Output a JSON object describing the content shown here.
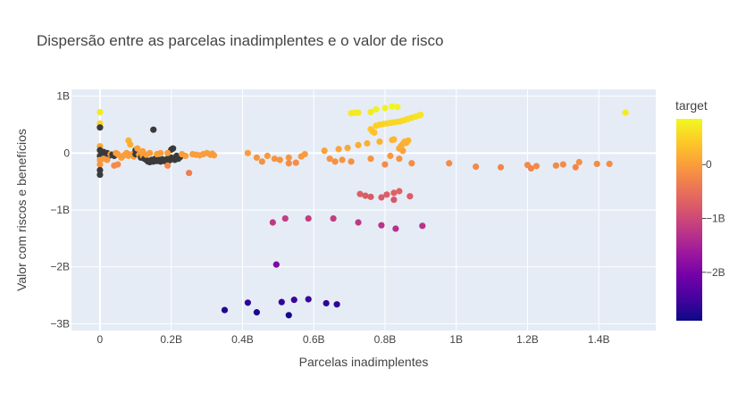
{
  "chart_data": {
    "type": "scatter",
    "title": "Dispersão entre as parcelas inadimplentes e o valor de risco",
    "xlabel": "Parcelas inadimplentes",
    "ylabel": "Valor com riscos e benefícios",
    "xlim": [
      -0.08,
      1.56
    ],
    "ylim": [
      -3.12,
      1.12
    ],
    "unit_suffix": "B",
    "x_ticks": [
      {
        "value": 0,
        "label": "0"
      },
      {
        "value": 0.2,
        "label": "0.2B"
      },
      {
        "value": 0.4,
        "label": "0.4B"
      },
      {
        "value": 0.6,
        "label": "0.6B"
      },
      {
        "value": 0.8,
        "label": "0.8B"
      },
      {
        "value": 1.0,
        "label": "1B"
      },
      {
        "value": 1.2,
        "label": "1.2B"
      },
      {
        "value": 1.4,
        "label": "1.4B"
      }
    ],
    "y_ticks": [
      {
        "value": 1,
        "label": "1B"
      },
      {
        "value": 0,
        "label": "0"
      },
      {
        "value": -1,
        "label": "−1B"
      },
      {
        "value": -2,
        "label": "−2B"
      },
      {
        "value": -3,
        "label": "−3B"
      }
    ],
    "colorbar": {
      "title": "target",
      "min": -2.9,
      "max": 0.85,
      "ticks": [
        {
          "value": 0,
          "label": "0"
        },
        {
          "value": -1,
          "label": "−1B"
        },
        {
          "value": -2,
          "label": "−2B"
        }
      ],
      "colorscale": [
        "#0d0887",
        "#46039f",
        "#7201a8",
        "#9c179e",
        "#bd3786",
        "#d8576b",
        "#ed7953",
        "#fb9f3a",
        "#fdca26",
        "#f0f921"
      ]
    },
    "dark_color": "#3a3a3a",
    "points": [
      {
        "x": 0.0,
        "y": 0.72,
        "c": 0.72
      },
      {
        "x": 0.0,
        "y": 0.52,
        "c": 0.52
      },
      {
        "x": 0.0,
        "y": 0.45,
        "c": "dark"
      },
      {
        "x": 0.0,
        "y": 0.12,
        "c": 0.1
      },
      {
        "x": 0.0,
        "y": 0.05,
        "c": "dark"
      },
      {
        "x": 0.0,
        "y": -0.05,
        "c": "dark"
      },
      {
        "x": 0.0,
        "y": -0.12,
        "c": 0.0
      },
      {
        "x": 0.0,
        "y": -0.2,
        "c": -0.1
      },
      {
        "x": 0.0,
        "y": -0.3,
        "c": "dark"
      },
      {
        "x": 0.0,
        "y": -0.38,
        "c": "dark"
      },
      {
        "x": 0.005,
        "y": -0.02,
        "c": "dark"
      },
      {
        "x": 0.01,
        "y": 0.02,
        "c": "dark"
      },
      {
        "x": 0.015,
        "y": -0.03,
        "c": "dark"
      },
      {
        "x": 0.02,
        "y": 0.0,
        "c": "dark"
      },
      {
        "x": 0.025,
        "y": -0.05,
        "c": "dark"
      },
      {
        "x": 0.01,
        "y": -0.1,
        "c": -0.05
      },
      {
        "x": 0.02,
        "y": -0.12,
        "c": -0.05
      },
      {
        "x": 0.03,
        "y": -0.02,
        "c": 0.0
      },
      {
        "x": 0.035,
        "y": -0.03,
        "c": "dark"
      },
      {
        "x": 0.04,
        "y": -0.05,
        "c": "dark"
      },
      {
        "x": 0.045,
        "y": 0.0,
        "c": 0.0
      },
      {
        "x": 0.05,
        "y": -0.02,
        "c": 0.0
      },
      {
        "x": 0.04,
        "y": -0.22,
        "c": -0.2
      },
      {
        "x": 0.05,
        "y": -0.2,
        "c": -0.2
      },
      {
        "x": 0.06,
        "y": -0.08,
        "c": 0.0
      },
      {
        "x": 0.065,
        "y": -0.05,
        "c": 0.0
      },
      {
        "x": 0.07,
        "y": -0.03,
        "c": 0.0
      },
      {
        "x": 0.075,
        "y": 0.0,
        "c": 0.0
      },
      {
        "x": 0.08,
        "y": -0.05,
        "c": 0.0
      },
      {
        "x": 0.08,
        "y": 0.22,
        "c": 0.2
      },
      {
        "x": 0.085,
        "y": 0.15,
        "c": 0.15
      },
      {
        "x": 0.09,
        "y": -0.02,
        "c": 0.0
      },
      {
        "x": 0.095,
        "y": -0.06,
        "c": 0.0
      },
      {
        "x": 0.1,
        "y": -0.02,
        "c": "dark"
      },
      {
        "x": 0.1,
        "y": 0.05,
        "c": "dark"
      },
      {
        "x": 0.105,
        "y": 0.08,
        "c": 0.05
      },
      {
        "x": 0.11,
        "y": -0.03,
        "c": 0.0
      },
      {
        "x": 0.115,
        "y": -0.08,
        "c": "dark"
      },
      {
        "x": 0.12,
        "y": -0.05,
        "c": 0.0
      },
      {
        "x": 0.12,
        "y": 0.03,
        "c": 0.0
      },
      {
        "x": 0.125,
        "y": -0.1,
        "c": "dark"
      },
      {
        "x": 0.13,
        "y": -0.12,
        "c": "dark"
      },
      {
        "x": 0.135,
        "y": -0.15,
        "c": "dark"
      },
      {
        "x": 0.14,
        "y": -0.16,
        "c": "dark"
      },
      {
        "x": 0.145,
        "y": -0.12,
        "c": "dark"
      },
      {
        "x": 0.15,
        "y": -0.15,
        "c": "dark"
      },
      {
        "x": 0.15,
        "y": 0.41,
        "c": "dark"
      },
      {
        "x": 0.155,
        "y": -0.1,
        "c": "dark"
      },
      {
        "x": 0.16,
        "y": -0.14,
        "c": "dark"
      },
      {
        "x": 0.165,
        "y": -0.12,
        "c": "dark"
      },
      {
        "x": 0.17,
        "y": -0.15,
        "c": "dark"
      },
      {
        "x": 0.175,
        "y": -0.11,
        "c": "dark"
      },
      {
        "x": 0.18,
        "y": -0.14,
        "c": "dark"
      },
      {
        "x": 0.185,
        "y": -0.12,
        "c": "dark"
      },
      {
        "x": 0.19,
        "y": -0.1,
        "c": "dark"
      },
      {
        "x": 0.195,
        "y": -0.13,
        "c": "dark"
      },
      {
        "x": 0.2,
        "y": -0.08,
        "c": "dark"
      },
      {
        "x": 0.2,
        "y": 0.06,
        "c": "dark"
      },
      {
        "x": 0.205,
        "y": 0.08,
        "c": "dark"
      },
      {
        "x": 0.21,
        "y": -0.12,
        "c": "dark"
      },
      {
        "x": 0.215,
        "y": -0.05,
        "c": "dark"
      },
      {
        "x": 0.22,
        "y": -0.1,
        "c": "dark"
      },
      {
        "x": 0.225,
        "y": -0.07,
        "c": "dark"
      },
      {
        "x": 0.13,
        "y": -0.03,
        "c": 0.0
      },
      {
        "x": 0.14,
        "y": 0.0,
        "c": 0.0
      },
      {
        "x": 0.16,
        "y": -0.02,
        "c": 0.0
      },
      {
        "x": 0.17,
        "y": 0.0,
        "c": 0.0
      },
      {
        "x": 0.19,
        "y": -0.22,
        "c": -0.2
      },
      {
        "x": 0.19,
        "y": 0.0,
        "c": 0.0
      },
      {
        "x": 0.23,
        "y": -0.02,
        "c": 0.0
      },
      {
        "x": 0.24,
        "y": -0.05,
        "c": 0.0
      },
      {
        "x": 0.25,
        "y": -0.35,
        "c": -0.35
      },
      {
        "x": 0.26,
        "y": -0.02,
        "c": 0.0
      },
      {
        "x": 0.27,
        "y": -0.03,
        "c": 0.0
      },
      {
        "x": 0.28,
        "y": -0.04,
        "c": 0.0
      },
      {
        "x": 0.29,
        "y": -0.02,
        "c": 0.0
      },
      {
        "x": 0.3,
        "y": 0.0,
        "c": 0.0
      },
      {
        "x": 0.31,
        "y": -0.03,
        "c": 0.0
      },
      {
        "x": 0.315,
        "y": -0.01,
        "c": 0.0
      },
      {
        "x": 0.32,
        "y": -0.04,
        "c": 0.0
      },
      {
        "x": 0.415,
        "y": 0.0,
        "c": 0.0
      },
      {
        "x": 0.44,
        "y": -0.08,
        "c": -0.1
      },
      {
        "x": 0.455,
        "y": -0.15,
        "c": -0.15
      },
      {
        "x": 0.47,
        "y": -0.05,
        "c": -0.05
      },
      {
        "x": 0.49,
        "y": -0.1,
        "c": -0.1
      },
      {
        "x": 0.505,
        "y": -0.12,
        "c": -0.12
      },
      {
        "x": 0.53,
        "y": -0.08,
        "c": -0.08
      },
      {
        "x": 0.53,
        "y": -0.18,
        "c": -0.18
      },
      {
        "x": 0.55,
        "y": -0.17,
        "c": -0.17
      },
      {
        "x": 0.565,
        "y": -0.06,
        "c": -0.06
      },
      {
        "x": 0.575,
        "y": -0.02,
        "c": -0.02
      },
      {
        "x": 0.63,
        "y": 0.04,
        "c": 0.04
      },
      {
        "x": 0.645,
        "y": -0.1,
        "c": -0.1
      },
      {
        "x": 0.66,
        "y": -0.15,
        "c": -0.15
      },
      {
        "x": 0.67,
        "y": 0.07,
        "c": 0.07
      },
      {
        "x": 0.68,
        "y": -0.12,
        "c": -0.12
      },
      {
        "x": 0.695,
        "y": 0.09,
        "c": 0.09
      },
      {
        "x": 0.705,
        "y": -0.15,
        "c": -0.15
      },
      {
        "x": 0.725,
        "y": 0.14,
        "c": 0.14
      },
      {
        "x": 0.75,
        "y": 0.17,
        "c": 0.17
      },
      {
        "x": 0.76,
        "y": -0.1,
        "c": -0.1
      },
      {
        "x": 0.785,
        "y": 0.2,
        "c": 0.2
      },
      {
        "x": 0.8,
        "y": -0.2,
        "c": -0.2
      },
      {
        "x": 0.815,
        "y": -0.05,
        "c": -0.05
      },
      {
        "x": 0.825,
        "y": 0.24,
        "c": 0.24
      },
      {
        "x": 0.84,
        "y": -0.1,
        "c": -0.1
      },
      {
        "x": 0.85,
        "y": 0.04,
        "c": 0.04
      },
      {
        "x": 0.875,
        "y": -0.18,
        "c": -0.18
      },
      {
        "x": 0.82,
        "y": 0.23,
        "c": 0.23
      },
      {
        "x": 0.84,
        "y": 0.08,
        "c": 0.08
      },
      {
        "x": 0.845,
        "y": 0.12,
        "c": 0.12
      },
      {
        "x": 0.85,
        "y": 0.16,
        "c": 0.16
      },
      {
        "x": 0.855,
        "y": 0.2,
        "c": 0.2
      },
      {
        "x": 0.86,
        "y": 0.18,
        "c": 0.18
      },
      {
        "x": 0.865,
        "y": 0.22,
        "c": 0.22
      },
      {
        "x": 0.98,
        "y": -0.18,
        "c": -0.18
      },
      {
        "x": 1.055,
        "y": -0.24,
        "c": -0.24
      },
      {
        "x": 1.125,
        "y": -0.25,
        "c": -0.25
      },
      {
        "x": 1.2,
        "y": -0.21,
        "c": -0.21
      },
      {
        "x": 1.21,
        "y": -0.27,
        "c": -0.27
      },
      {
        "x": 1.225,
        "y": -0.23,
        "c": -0.23
      },
      {
        "x": 1.28,
        "y": -0.22,
        "c": -0.22
      },
      {
        "x": 1.3,
        "y": -0.2,
        "c": -0.2
      },
      {
        "x": 1.335,
        "y": -0.25,
        "c": -0.25
      },
      {
        "x": 1.345,
        "y": -0.16,
        "c": -0.16
      },
      {
        "x": 1.395,
        "y": -0.19,
        "c": -0.19
      },
      {
        "x": 1.43,
        "y": -0.19,
        "c": -0.19
      },
      {
        "x": 1.475,
        "y": 0.71,
        "c": 0.71
      },
      {
        "x": 0.705,
        "y": 0.7,
        "c": 0.7
      },
      {
        "x": 0.715,
        "y": 0.71,
        "c": 0.71
      },
      {
        "x": 0.725,
        "y": 0.71,
        "c": 0.71
      },
      {
        "x": 0.76,
        "y": 0.72,
        "c": 0.72
      },
      {
        "x": 0.775,
        "y": 0.77,
        "c": 0.77
      },
      {
        "x": 0.8,
        "y": 0.79,
        "c": 0.79
      },
      {
        "x": 0.82,
        "y": 0.82,
        "c": 0.82
      },
      {
        "x": 0.835,
        "y": 0.81,
        "c": 0.81
      },
      {
        "x": 0.76,
        "y": 0.42,
        "c": 0.42
      },
      {
        "x": 0.765,
        "y": 0.38,
        "c": 0.38
      },
      {
        "x": 0.77,
        "y": 0.36,
        "c": 0.36
      },
      {
        "x": 0.775,
        "y": 0.48,
        "c": 0.48
      },
      {
        "x": 0.785,
        "y": 0.5,
        "c": 0.5
      },
      {
        "x": 0.795,
        "y": 0.51,
        "c": 0.51
      },
      {
        "x": 0.805,
        "y": 0.52,
        "c": 0.52
      },
      {
        "x": 0.815,
        "y": 0.53,
        "c": 0.53
      },
      {
        "x": 0.825,
        "y": 0.54,
        "c": 0.54
      },
      {
        "x": 0.835,
        "y": 0.55,
        "c": 0.55
      },
      {
        "x": 0.845,
        "y": 0.56,
        "c": 0.56
      },
      {
        "x": 0.855,
        "y": 0.58,
        "c": 0.58
      },
      {
        "x": 0.865,
        "y": 0.6,
        "c": 0.6
      },
      {
        "x": 0.875,
        "y": 0.62,
        "c": 0.62
      },
      {
        "x": 0.885,
        "y": 0.64,
        "c": 0.64
      },
      {
        "x": 0.895,
        "y": 0.66,
        "c": 0.66
      },
      {
        "x": 0.9,
        "y": 0.67,
        "c": 0.67
      },
      {
        "x": 0.73,
        "y": -0.72,
        "c": -0.72
      },
      {
        "x": 0.745,
        "y": -0.75,
        "c": -0.75
      },
      {
        "x": 0.76,
        "y": -0.77,
        "c": -0.77
      },
      {
        "x": 0.79,
        "y": -0.78,
        "c": -0.78
      },
      {
        "x": 0.805,
        "y": -0.73,
        "c": -0.73
      },
      {
        "x": 0.825,
        "y": -0.7,
        "c": -0.7
      },
      {
        "x": 0.84,
        "y": -0.67,
        "c": -0.67
      },
      {
        "x": 0.87,
        "y": -0.76,
        "c": -0.76
      },
      {
        "x": 0.825,
        "y": -0.82,
        "c": -0.82
      },
      {
        "x": 0.485,
        "y": -1.22,
        "c": -1.22
      },
      {
        "x": 0.52,
        "y": -1.15,
        "c": -1.15
      },
      {
        "x": 0.585,
        "y": -1.15,
        "c": -1.15
      },
      {
        "x": 0.655,
        "y": -1.15,
        "c": -1.15
      },
      {
        "x": 0.725,
        "y": -1.22,
        "c": -1.22
      },
      {
        "x": 0.79,
        "y": -1.27,
        "c": -1.27
      },
      {
        "x": 0.83,
        "y": -1.33,
        "c": -1.33
      },
      {
        "x": 0.905,
        "y": -1.28,
        "c": -1.28
      },
      {
        "x": 0.495,
        "y": -1.96,
        "c": -1.96
      },
      {
        "x": 0.35,
        "y": -2.76,
        "c": -2.76
      },
      {
        "x": 0.415,
        "y": -2.63,
        "c": -2.63
      },
      {
        "x": 0.44,
        "y": -2.8,
        "c": -2.8
      },
      {
        "x": 0.51,
        "y": -2.62,
        "c": -2.62
      },
      {
        "x": 0.53,
        "y": -2.85,
        "c": -2.85
      },
      {
        "x": 0.545,
        "y": -2.58,
        "c": -2.58
      },
      {
        "x": 0.585,
        "y": -2.57,
        "c": -2.57
      },
      {
        "x": 0.635,
        "y": -2.64,
        "c": -2.64
      },
      {
        "x": 0.665,
        "y": -2.66,
        "c": -2.66
      }
    ]
  }
}
